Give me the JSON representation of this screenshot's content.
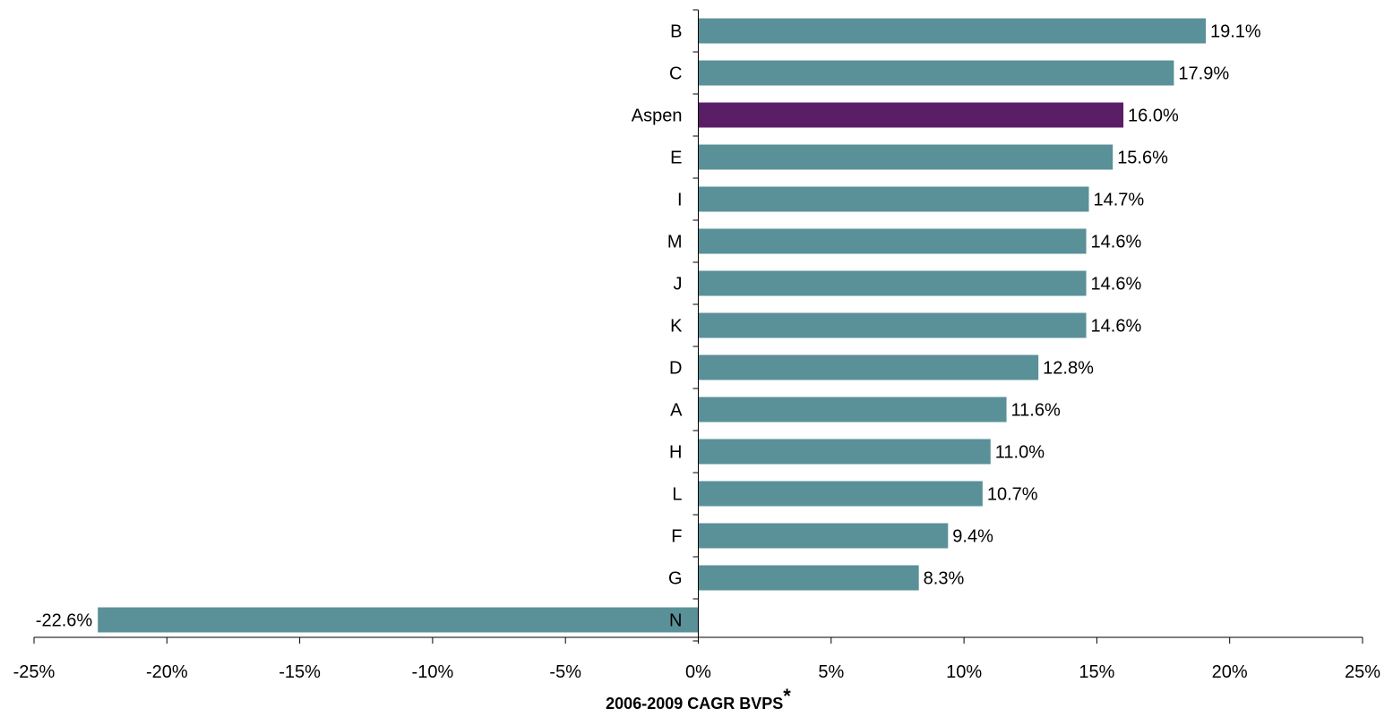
{
  "chart_data": {
    "type": "bar",
    "orientation": "horizontal",
    "categories": [
      "B",
      "C",
      "Aspen",
      "E",
      "I",
      "M",
      "J",
      "K",
      "D",
      "A",
      "H",
      "L",
      "F",
      "G",
      "N"
    ],
    "values": [
      19.1,
      17.9,
      16.0,
      15.6,
      14.7,
      14.6,
      14.6,
      14.6,
      12.8,
      11.6,
      11.0,
      10.7,
      9.4,
      8.3,
      -22.6
    ],
    "data_labels": [
      "19.1%",
      "17.9%",
      "16.0%",
      "15.6%",
      "14.7%",
      "14.6%",
      "14.6%",
      "14.6%",
      "12.8%",
      "11.6%",
      "11.0%",
      "10.7%",
      "9.4%",
      "8.3%",
      "-22.6%"
    ],
    "xlabel": "2006-2009 CAGR BVPS",
    "xlabel_suffix": "*",
    "ylabel": "",
    "xlim": [
      -25,
      25
    ],
    "x_ticks": [
      -25,
      -20,
      -15,
      -10,
      -5,
      0,
      5,
      10,
      15,
      20,
      25
    ],
    "x_tick_labels": [
      "-25%",
      "-20%",
      "-15%",
      "-10%",
      "-5%",
      "0%",
      "5%",
      "10%",
      "15%",
      "20%",
      "25%"
    ],
    "grid": false,
    "legend": "none",
    "colors": {
      "default_bar": "#5a9098",
      "highlight_bar": "#5a1e66",
      "highlight_category": "Aspen"
    }
  }
}
